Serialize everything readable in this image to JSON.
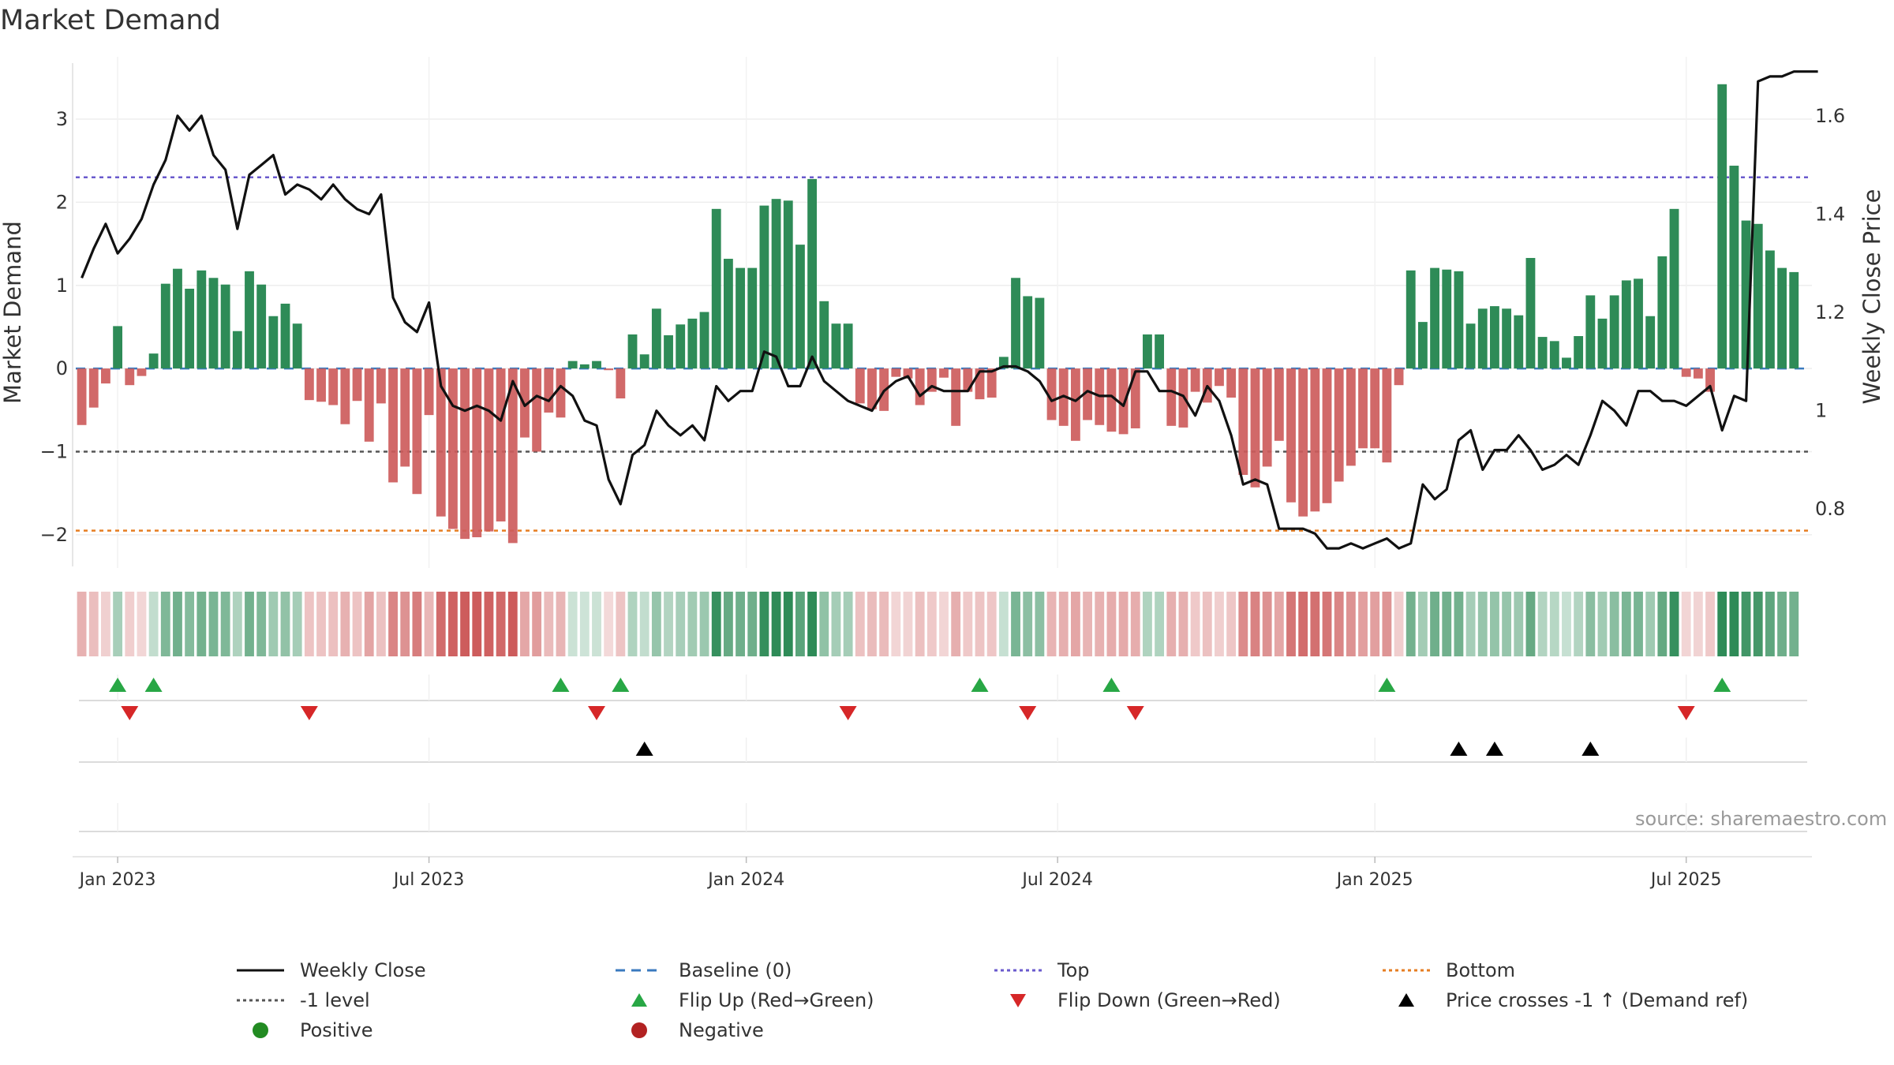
{
  "title": "Market Demand",
  "source": "source: sharemaestro.com",
  "colors": {
    "pos": "#2e8b57",
    "neg": "#cd5c5c",
    "line": "#111111",
    "top": "#6a5acd",
    "minus1": "#555555",
    "bottom": "#e67e22",
    "baseline": "#3a7abf",
    "flip_up": "#28a745",
    "flip_down": "#d62728",
    "cross": "#000000",
    "positive_dot": "#228b22",
    "negative_dot": "#b22222"
  },
  "chart_data": {
    "type": "bar",
    "title": "Market Demand",
    "ylabel": "Market Demand",
    "y2label": "Weekly Close Price",
    "ylim": [
      -2.4,
      3.75
    ],
    "y2lim": [
      0.68,
      1.72
    ],
    "y_ticks": [
      3,
      2,
      1,
      0,
      -1,
      -2
    ],
    "y_tick_labels": [
      "3",
      "2",
      "1",
      "0",
      "−1",
      "−2"
    ],
    "y2_ticks": [
      1.6,
      1.4,
      1.2,
      1.0,
      0.8
    ],
    "y2_tick_labels": [
      "1.6",
      "1.4",
      "1.2",
      "1",
      "0.8"
    ],
    "reference_lines": {
      "top": 2.3,
      "minus1": -1,
      "bottom": -1.95,
      "baseline": 0
    },
    "x_tick_labels": [
      {
        "label": "Jan 2023",
        "week": 3
      },
      {
        "label": "Jul 2023",
        "week": 29
      },
      {
        "label": "Jan 2024",
        "week": 55.5
      },
      {
        "label": "Jul 2024",
        "week": 81.5
      },
      {
        "label": "Jan 2025",
        "week": 108
      },
      {
        "label": "Jul 2025",
        "week": 134
      }
    ],
    "n_weeks": 145,
    "demand": [
      -0.68,
      -0.47,
      -0.18,
      0.51,
      -0.2,
      -0.09,
      0.18,
      1.02,
      1.2,
      0.96,
      1.18,
      1.09,
      1.01,
      0.45,
      1.17,
      1.01,
      0.63,
      0.78,
      0.54,
      -0.38,
      -0.4,
      -0.44,
      -0.67,
      -0.39,
      -0.88,
      -0.42,
      -1.37,
      -1.18,
      -1.51,
      -0.56,
      -1.78,
      -1.93,
      -2.05,
      -2.03,
      -1.96,
      -1.84,
      -2.1,
      -0.83,
      -1.0,
      -0.53,
      -0.59,
      0.09,
      0.05,
      0.09,
      -0.02,
      -0.36,
      0.41,
      0.17,
      0.72,
      0.4,
      0.53,
      0.6,
      0.68,
      1.92,
      1.32,
      1.21,
      1.21,
      1.96,
      2.04,
      2.02,
      1.49,
      2.28,
      0.81,
      0.54,
      0.54,
      -0.42,
      -0.49,
      -0.51,
      -0.1,
      -0.12,
      -0.44,
      -0.28,
      -0.11,
      -0.69,
      -0.28,
      -0.37,
      -0.35,
      0.14,
      1.09,
      0.87,
      0.85,
      -0.62,
      -0.69,
      -0.87,
      -0.62,
      -0.68,
      -0.76,
      -0.79,
      -0.72,
      0.41,
      0.41,
      -0.69,
      -0.71,
      -0.28,
      -0.41,
      -0.21,
      -0.35,
      -1.28,
      -1.43,
      -1.18,
      -0.87,
      -1.61,
      -1.78,
      -1.72,
      -1.62,
      -1.36,
      -1.17,
      -0.96,
      -0.96,
      -1.13,
      -0.2,
      1.18,
      0.56,
      1.21,
      1.19,
      1.17,
      0.54,
      0.72,
      0.75,
      0.72,
      0.64,
      1.33,
      0.38,
      0.33,
      0.13,
      0.39,
      0.88,
      0.6,
      0.88,
      1.06,
      1.08,
      0.63,
      1.35,
      1.92,
      -0.1,
      -0.12,
      -0.28,
      3.42,
      2.44,
      1.78,
      1.74,
      1.42,
      1.21,
      1.16
    ],
    "close": [
      1.27,
      1.33,
      1.38,
      1.32,
      1.35,
      1.39,
      1.46,
      1.51,
      1.6,
      1.57,
      1.6,
      1.52,
      1.49,
      1.37,
      1.48,
      1.5,
      1.52,
      1.44,
      1.46,
      1.45,
      1.43,
      1.46,
      1.43,
      1.41,
      1.4,
      1.44,
      1.23,
      1.18,
      1.16,
      1.22,
      1.05,
      1.01,
      1.0,
      1.01,
      1.0,
      0.98,
      1.06,
      1.01,
      1.03,
      1.02,
      1.05,
      1.03,
      0.98,
      0.97,
      0.86,
      0.81,
      0.91,
      0.93,
      1.0,
      0.97,
      0.95,
      0.97,
      0.94,
      1.05,
      1.02,
      1.04,
      1.04,
      1.12,
      1.11,
      1.05,
      1.05,
      1.11,
      1.06,
      1.04,
      1.02,
      1.01,
      1.0,
      1.04,
      1.06,
      1.07,
      1.03,
      1.05,
      1.04,
      1.04,
      1.04,
      1.08,
      1.08,
      1.09,
      1.09,
      1.08,
      1.06,
      1.02,
      1.03,
      1.02,
      1.04,
      1.03,
      1.03,
      1.01,
      1.08,
      1.08,
      1.04,
      1.04,
      1.03,
      0.99,
      1.05,
      1.02,
      0.95,
      0.85,
      0.86,
      0.85,
      0.76,
      0.76,
      0.76,
      0.75,
      0.72,
      0.72,
      0.73,
      0.72,
      0.73,
      0.74,
      0.72,
      0.73,
      0.85,
      0.82,
      0.84,
      0.94,
      0.96,
      0.88,
      0.92,
      0.92,
      0.95,
      0.92,
      0.88,
      0.89,
      0.91,
      0.89,
      0.95,
      1.02,
      1.0,
      0.97,
      1.04,
      1.04,
      1.02,
      1.02,
      1.01,
      1.03,
      1.05,
      0.96,
      1.03,
      1.02,
      1.67,
      1.68,
      1.68,
      1.69,
      1.69,
      1.69
    ],
    "flip_up_weeks": [
      3,
      6,
      40,
      45,
      75,
      86,
      109,
      137
    ],
    "flip_down_weeks": [
      4,
      19,
      43,
      64,
      79,
      88,
      134
    ],
    "price_cross_weeks": [
      47,
      115,
      118,
      126
    ],
    "strip_intensity": "derived from demand magnitude per week"
  },
  "legend": [
    {
      "label": "Weekly Close",
      "symbol": "solid-line"
    },
    {
      "label": "Baseline (0)",
      "symbol": "dashed-line"
    },
    {
      "label": "Top",
      "symbol": "dotted-line-top"
    },
    {
      "label": "Bottom",
      "symbol": "dotted-line-bottom"
    },
    {
      "label": "-1 level",
      "symbol": "dotted-line-minus1"
    },
    {
      "label": "Flip Up (Red→Green)",
      "symbol": "triangle-up-green"
    },
    {
      "label": "Flip Down (Green→Red)",
      "symbol": "triangle-down-red"
    },
    {
      "label": "Price crosses -1 ↑ (Demand ref)",
      "symbol": "triangle-up-black"
    },
    {
      "label": "Positive",
      "symbol": "dot-green"
    },
    {
      "label": "Negative",
      "symbol": "dot-red"
    }
  ]
}
